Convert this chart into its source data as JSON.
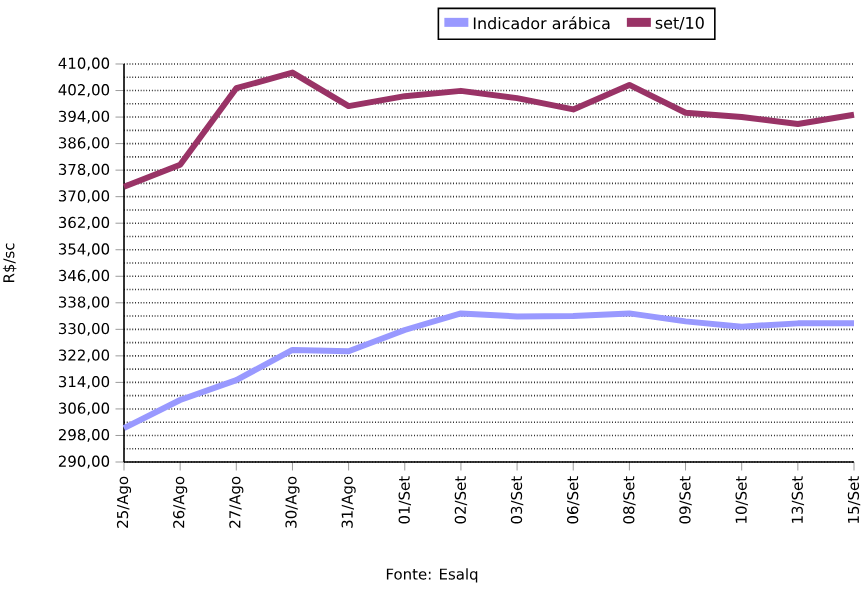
{
  "chart_data": {
    "type": "line",
    "categories": [
      "25/Ago",
      "26/Ago",
      "27/Ago",
      "30/Ago",
      "31/Ago",
      "01/Set",
      "02/Set",
      "03/Set",
      "06/Set",
      "08/Set",
      "09/Set",
      "10/Set",
      "13/Set",
      "15/Set"
    ],
    "series": [
      {
        "name": "Indicador arábica",
        "color": "#9999ff",
        "values": [
          300.2,
          308.7,
          314.7,
          323.8,
          323.4,
          329.8,
          334.8,
          333.9,
          334,
          334.8,
          332.4,
          330.8,
          331.8,
          331.8
        ]
      },
      {
        "name": "set/10",
        "color": "#993366",
        "values": [
          373,
          379.6,
          402.7,
          407.4,
          397.3,
          400.3,
          401.9,
          399.7,
          396.3,
          403.7,
          395.3,
          394,
          391.9,
          394.7
        ]
      }
    ],
    "ylabel": "R$/sc",
    "ylim": [
      290,
      410
    ],
    "yticks": [
      {
        "value": 290,
        "label": "290,00"
      },
      {
        "value": 298,
        "label": "298,00"
      },
      {
        "value": 306,
        "label": "306,00"
      },
      {
        "value": 314,
        "label": "314,00"
      },
      {
        "value": 322,
        "label": "322,00"
      },
      {
        "value": 330,
        "label": "330,00"
      },
      {
        "value": 338,
        "label": "338,00"
      },
      {
        "value": 346,
        "label": "346,00"
      },
      {
        "value": 354,
        "label": "354,00"
      },
      {
        "value": 362,
        "label": "362,00"
      },
      {
        "value": 370,
        "label": "370,00"
      },
      {
        "value": 378,
        "label": "378,00"
      },
      {
        "value": 386,
        "label": "386,00"
      },
      {
        "value": 394,
        "label": "394,00"
      },
      {
        "value": 402,
        "label": "402,00"
      },
      {
        "value": 410,
        "label": "410,00"
      }
    ],
    "grid": "y",
    "legend": "top",
    "annotations": [
      "Fonte: Esalq"
    ]
  }
}
